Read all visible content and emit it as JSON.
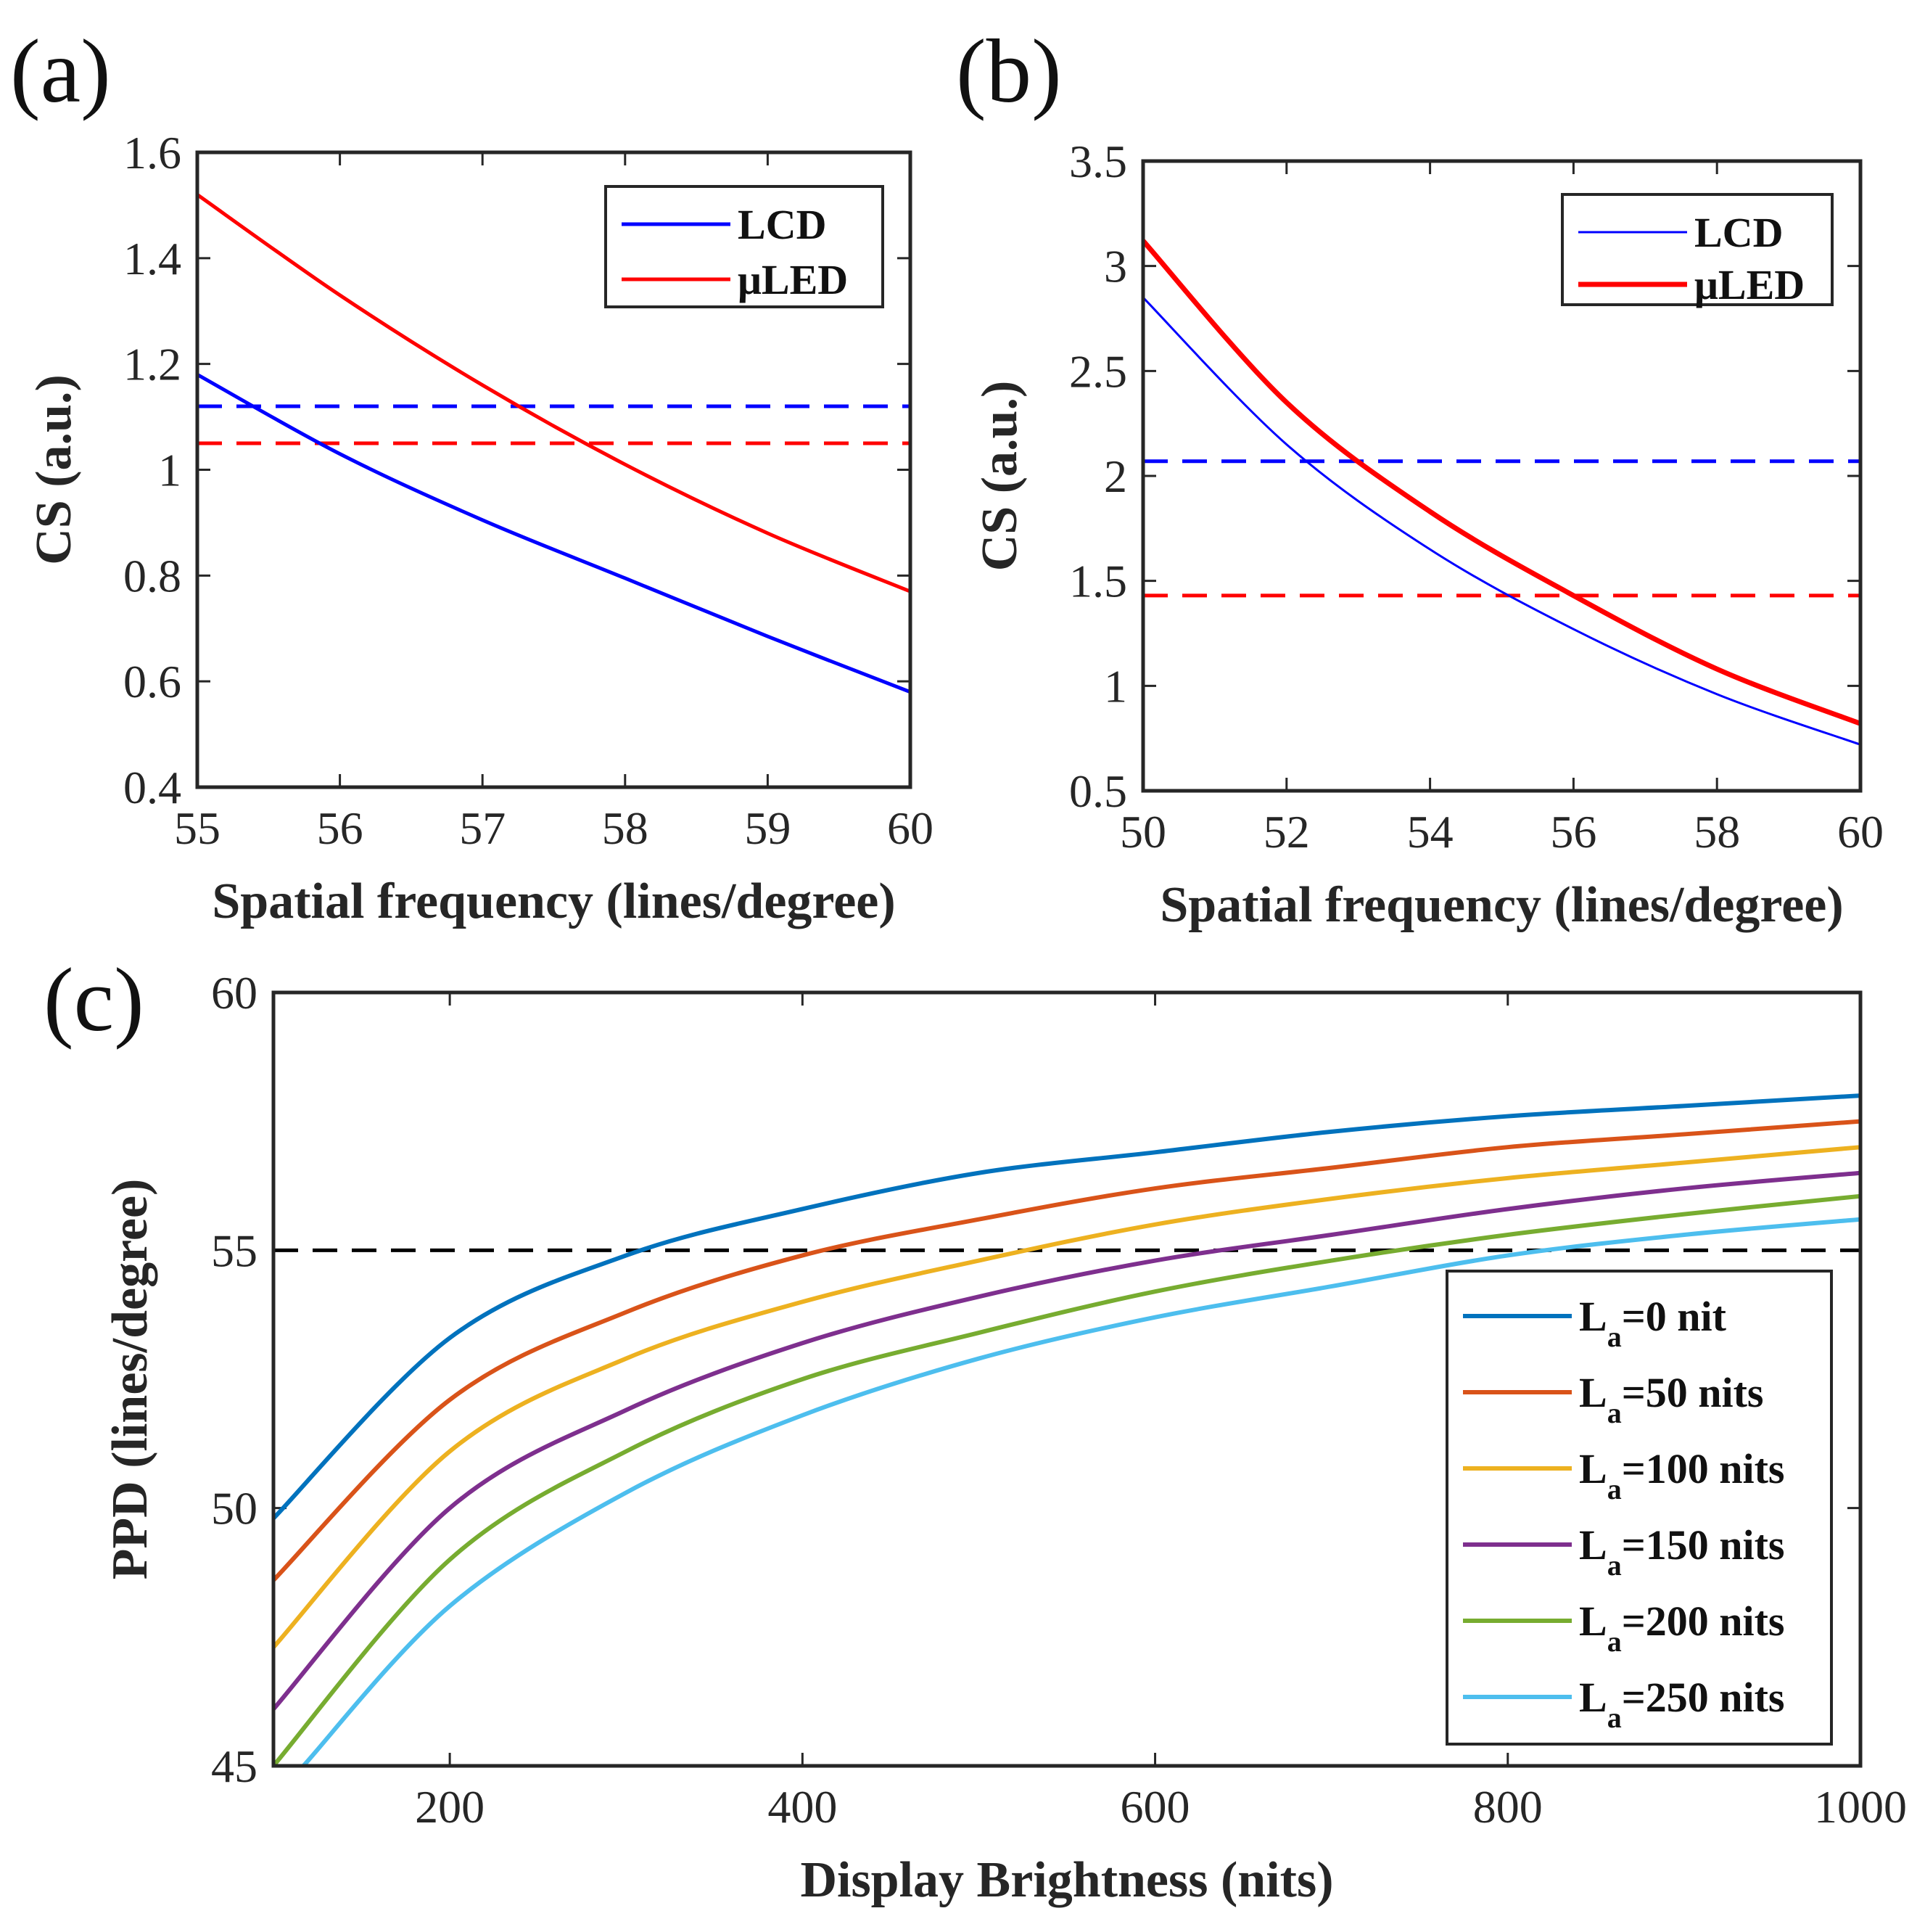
{
  "colors": {
    "blue": "#0000ff",
    "red": "#ff0000",
    "la0": "#0072bd",
    "la50": "#d95319",
    "la100": "#edb120",
    "la150": "#7e2f8e",
    "la200": "#77ac30",
    "la250": "#4dbeee",
    "ref": "#000000"
  },
  "chart_data": [
    {
      "id": "a",
      "label": "(a)",
      "type": "line",
      "xlabel": "Spatial frequency (lines/degree)",
      "ylabel": "CS (a.u.)",
      "xlim": [
        55,
        60
      ],
      "ylim": [
        0.4,
        1.6
      ],
      "xticks": [
        "55",
        "56",
        "57",
        "58",
        "59",
        "60"
      ],
      "yticks": [
        "0.4",
        "0.6",
        "0.8",
        "1",
        "1.2",
        "1.4",
        "1.6"
      ],
      "legend": {
        "position": "top-right",
        "entries": [
          {
            "name": "LCD",
            "color": "blue",
            "width": 5
          },
          {
            "name": "μLED",
            "color": "red",
            "width": 5
          }
        ]
      },
      "series": [
        {
          "name": "LCD",
          "color": "blue",
          "x": [
            55,
            56,
            57,
            58,
            59,
            60
          ],
          "values": [
            1.18,
            1.03,
            0.905,
            0.795,
            0.685,
            0.58
          ]
        },
        {
          "name": "μLED",
          "color": "red",
          "x": [
            55,
            56,
            57,
            58,
            59,
            60
          ],
          "values": [
            1.52,
            1.33,
            1.16,
            1.01,
            0.88,
            0.77
          ]
        }
      ],
      "hlines": [
        {
          "y": 1.12,
          "color": "blue"
        },
        {
          "y": 1.05,
          "color": "red"
        }
      ]
    },
    {
      "id": "b",
      "label": "(b)",
      "type": "line",
      "xlabel": "Spatial frequency (lines/degree)",
      "ylabel": "CS (a.u.)",
      "xlim": [
        50,
        60
      ],
      "ylim": [
        0.5,
        3.5
      ],
      "xticks": [
        "50",
        "52",
        "54",
        "56",
        "58",
        "60"
      ],
      "yticks": [
        "0.5",
        "1",
        "1.5",
        "2",
        "2.5",
        "3",
        "3.5"
      ],
      "legend": {
        "position": "top-right",
        "entries": [
          {
            "name": "LCD",
            "color": "blue",
            "width": 3
          },
          {
            "name": "μLED",
            "color": "red",
            "width": 7
          }
        ]
      },
      "series": [
        {
          "name": "LCD",
          "color": "blue",
          "x": [
            50,
            52,
            54,
            56,
            58,
            60
          ],
          "values": [
            2.85,
            2.15,
            1.65,
            1.27,
            0.96,
            0.72
          ]
        },
        {
          "name": "μLED",
          "color": "red",
          "x": [
            50,
            52,
            54,
            56,
            58,
            60
          ],
          "values": [
            3.12,
            2.35,
            1.83,
            1.43,
            1.08,
            0.82
          ]
        }
      ],
      "hlines": [
        {
          "y": 2.07,
          "color": "blue"
        },
        {
          "y": 1.43,
          "color": "red"
        }
      ]
    },
    {
      "id": "c",
      "label": "(c)",
      "type": "line",
      "xlabel": "Display Brightness (nits)",
      "ylabel": "PPD (lines/degree)",
      "xlim": [
        100,
        1000
      ],
      "ylim": [
        45,
        60
      ],
      "xticks": [
        "200",
        "400",
        "600",
        "800",
        "1000"
      ],
      "yticks": [
        "45",
        "50",
        "55",
        "60"
      ],
      "legend": {
        "position": "bottom-right",
        "entries": [
          {
            "main": "L",
            "sub": "a",
            "rest": "=0 nit",
            "color": "la0"
          },
          {
            "main": "L",
            "sub": "a",
            "rest": "=50 nits",
            "color": "la50"
          },
          {
            "main": "L",
            "sub": "a",
            "rest": "=100 nits",
            "color": "la100"
          },
          {
            "main": "L",
            "sub": "a",
            "rest": "=150 nits",
            "color": "la150"
          },
          {
            "main": "L",
            "sub": "a",
            "rest": "=200 nits",
            "color": "la200"
          },
          {
            "main": "L",
            "sub": "a",
            "rest": "=250 nits",
            "color": "la250"
          }
        ]
      },
      "series": [
        {
          "name": "La=0 nit",
          "color": "la0",
          "x": [
            100,
            200,
            300,
            400,
            500,
            600,
            700,
            800,
            900,
            1000
          ],
          "values": [
            49.8,
            53.3,
            54.9,
            55.8,
            56.5,
            56.9,
            57.3,
            57.6,
            57.8,
            58.0
          ]
        },
        {
          "name": "La=50 nits",
          "color": "la50",
          "x": [
            100,
            200,
            300,
            400,
            500,
            600,
            700,
            800,
            900,
            1000
          ],
          "values": [
            48.6,
            52.1,
            53.8,
            54.9,
            55.6,
            56.2,
            56.6,
            57.0,
            57.25,
            57.5
          ]
        },
        {
          "name": "La=100 nits",
          "color": "la100",
          "x": [
            100,
            200,
            300,
            400,
            500,
            600,
            700,
            800,
            900,
            1000
          ],
          "values": [
            47.3,
            51.1,
            52.9,
            54.0,
            54.8,
            55.5,
            56.0,
            56.4,
            56.7,
            57.0
          ]
        },
        {
          "name": "La=150 nits",
          "color": "la150",
          "x": [
            100,
            200,
            300,
            400,
            500,
            600,
            700,
            800,
            900,
            1000
          ],
          "values": [
            46.1,
            50.0,
            51.9,
            53.2,
            54.1,
            54.8,
            55.3,
            55.8,
            56.2,
            56.5
          ]
        },
        {
          "name": "La=200 nits",
          "color": "la200",
          "x": [
            100,
            200,
            300,
            400,
            500,
            600,
            700,
            800,
            900,
            1000
          ],
          "values": [
            45.0,
            49.0,
            51.1,
            52.5,
            53.4,
            54.2,
            54.8,
            55.3,
            55.7,
            56.05
          ]
        },
        {
          "name": "La=250 nits",
          "color": "la250",
          "x": [
            117,
            200,
            300,
            400,
            500,
            600,
            700,
            800,
            900,
            1000
          ],
          "values": [
            45.0,
            48.1,
            50.3,
            51.8,
            52.9,
            53.7,
            54.3,
            54.9,
            55.3,
            55.6
          ]
        }
      ],
      "hlines": [
        {
          "y": 55,
          "color": "ref"
        }
      ]
    }
  ]
}
